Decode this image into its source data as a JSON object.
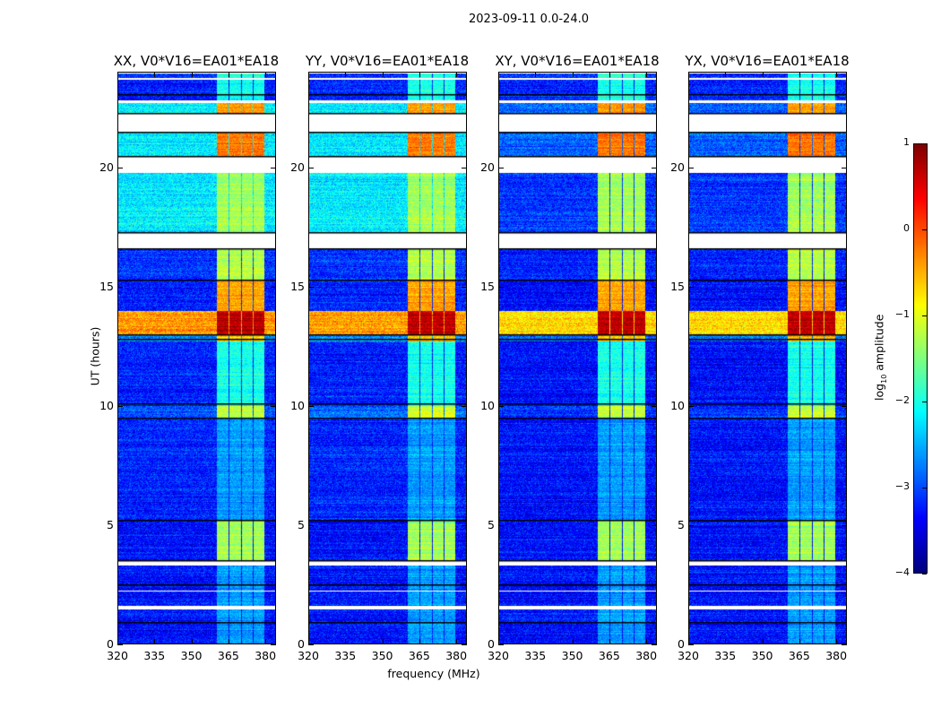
{
  "suptitle": "2023-09-11 0.0-24.0",
  "chart_data": {
    "type": "heatmap",
    "xlabel": "frequency (MHz)",
    "ylabel": "UT (hours)",
    "xlim": [
      320,
      384.3
    ],
    "ylim": [
      0,
      24
    ],
    "xticks": [
      "320",
      "335",
      "350",
      "365",
      "380"
    ],
    "xtick_values": [
      320,
      335,
      350,
      365,
      380
    ],
    "yticks": [
      "0",
      "5",
      "10",
      "15",
      "20"
    ],
    "ytick_values": [
      0,
      5,
      10,
      15,
      20
    ],
    "panels": [
      {
        "title": "XX, V0*V16=EA01*EA18",
        "type": "parallel"
      },
      {
        "title": "YY, V0*V16=EA01*EA18",
        "type": "parallel"
      },
      {
        "title": "XY, V0*V16=EA01*EA18",
        "type": "cross"
      },
      {
        "title": "YX, V0*V16=EA01*EA18",
        "type": "cross"
      }
    ],
    "channel_blocks_mhz": [
      [
        360.4,
        365.0
      ],
      [
        365.4,
        370.0
      ],
      [
        370.4,
        375.0
      ],
      [
        375.4,
        379.6
      ]
    ],
    "time_bands": [
      {
        "t": [
          0,
          3.3
        ],
        "bg_parallel": -3.3,
        "bg_cross": -3.3,
        "block": -2.6
      },
      {
        "t": [
          3.5,
          5.2
        ],
        "bg_parallel": -3.3,
        "bg_cross": -3.3,
        "block": -1.3
      },
      {
        "t": [
          5.2,
          9.5
        ],
        "bg_parallel": -3.2,
        "bg_cross": -3.3,
        "block": -2.6
      },
      {
        "t": [
          9.5,
          10.0
        ],
        "bg_parallel": -2.9,
        "bg_cross": -3.1,
        "block": -1.1
      },
      {
        "t": [
          10.0,
          12.7
        ],
        "bg_parallel": -3.2,
        "bg_cross": -3.3,
        "block": -2.0
      },
      {
        "t": [
          12.7,
          13.0
        ],
        "bg_parallel": -2.6,
        "bg_cross": -2.8,
        "block": -0.6
      },
      {
        "t": [
          13.0,
          14.0
        ],
        "bg_parallel": -0.4,
        "bg_cross": -0.7,
        "block": 0.7
      },
      {
        "t": [
          14.0,
          15.3
        ],
        "bg_parallel": -3.2,
        "bg_cross": -3.3,
        "block": -0.4
      },
      {
        "t": [
          15.3,
          16.6
        ],
        "bg_parallel": -3.1,
        "bg_cross": -3.2,
        "block": -1.2
      },
      {
        "t": [
          17.3,
          20.5
        ],
        "bg_parallel": -2.2,
        "bg_cross": -3.1,
        "block": -1.3
      },
      {
        "t": [
          20.5,
          21.5
        ],
        "bg_parallel": -2.2,
        "bg_cross": -2.9,
        "block": -0.2
      },
      {
        "t": [
          22.3,
          22.8
        ],
        "bg_parallel": -2.2,
        "bg_cross": -2.9,
        "block": -0.4
      },
      {
        "t": [
          22.8,
          24.0
        ],
        "bg_parallel": -3.2,
        "bg_cross": -3.2,
        "block": -2.0
      }
    ],
    "flagged_hours": [
      [
        1.45,
        1.6
      ],
      [
        2.2,
        2.25
      ],
      [
        3.3,
        3.5
      ],
      [
        16.6,
        17.3
      ],
      [
        19.8,
        20.5
      ],
      [
        21.5,
        22.3
      ],
      [
        22.75,
        22.85
      ],
      [
        23.7,
        23.8
      ]
    ],
    "boundary_lines_hours": [
      0.9,
      2.5,
      3.5,
      5.2,
      9.5,
      10.1,
      12.8,
      13.0,
      15.3,
      16.6,
      17.3,
      20.5,
      21.5,
      22.3,
      23.1
    ],
    "colorbar": {
      "label": "log10 amplitude",
      "label_main": "log",
      "label_sub": "10",
      "label_rest": " amplitude",
      "range": [
        -4,
        1
      ],
      "ticks": [
        "1",
        "0",
        "−1",
        "−2",
        "−3",
        "−4"
      ],
      "tick_values": [
        1,
        0,
        -1,
        -2,
        -3,
        -4
      ],
      "colormap": "jet"
    }
  }
}
